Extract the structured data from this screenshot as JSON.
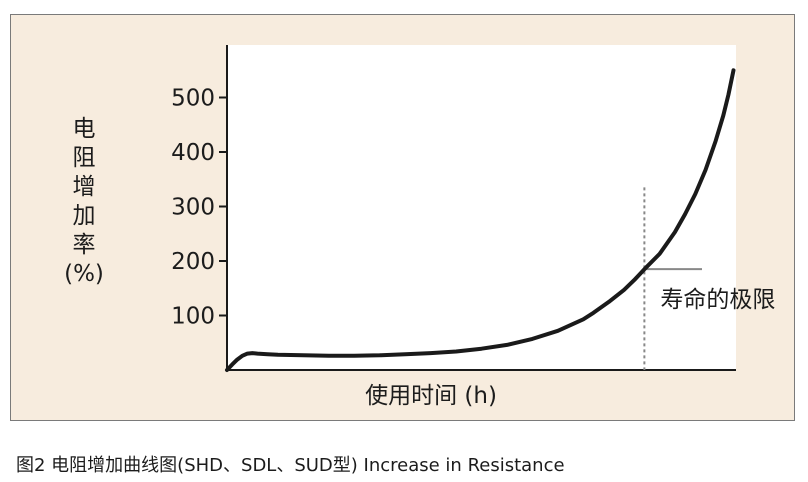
{
  "caption": "图2 电阻增加曲线图(SHD、SDL、SUD型) Increase in Resistance",
  "chart_data": {
    "type": "line",
    "title": "",
    "xlabel": "使用时间 (h)",
    "ylabel": [
      "电",
      "阻",
      "增",
      "加",
      "率",
      "(%)"
    ],
    "y_ticks": [
      100,
      200,
      300,
      400,
      500
    ],
    "ylim": [
      0,
      570
    ],
    "xlim": [
      0,
      100
    ],
    "x_ticks": [],
    "grid": false,
    "annotation": {
      "label": "寿命的极限",
      "x": 82,
      "y": 185
    },
    "series": [
      {
        "name": "",
        "x": [
          0,
          1,
          2,
          3,
          4,
          5,
          6,
          8,
          10,
          15,
          20,
          25,
          30,
          35,
          40,
          45,
          50,
          55,
          60,
          65,
          70,
          72,
          75,
          78,
          80,
          82,
          85,
          88,
          90,
          92,
          94,
          96,
          97.5,
          98.5,
          99.5
        ],
        "y": [
          0,
          10,
          19,
          26,
          30,
          31,
          30,
          29,
          28,
          27,
          26,
          26,
          27,
          29,
          31,
          34,
          39,
          46,
          57,
          72,
          93,
          105,
          125,
          147,
          165,
          185,
          213,
          253,
          286,
          323,
          367,
          420,
          467,
          505,
          550
        ]
      }
    ],
    "colors": {
      "line": "#1a1a1a",
      "annotation_line": "#888888",
      "background": "#f7ecde",
      "plot_background": "#ffffff"
    }
  }
}
